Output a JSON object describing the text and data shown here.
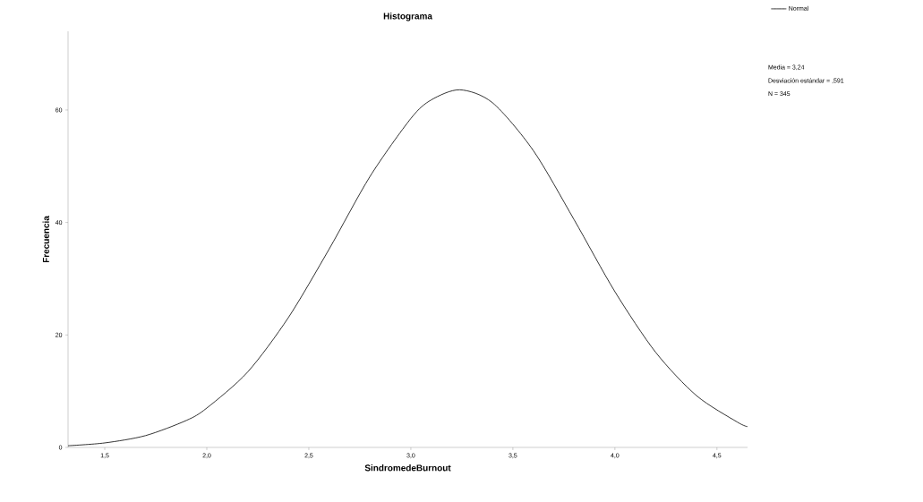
{
  "chart_data": {
    "type": "line",
    "title": "Histograma",
    "xlabel": "SindromedeBurnout",
    "ylabel": "Frecuencia",
    "annotations": [
      "Media = 3,24",
      "Desviación estándar = ,591",
      "N = 345"
    ],
    "x": [
      1.32,
      1.5,
      1.7,
      1.9,
      2.0,
      2.2,
      2.4,
      2.6,
      2.8,
      3.0,
      3.1,
      3.24,
      3.4,
      3.6,
      3.8,
      4.0,
      4.2,
      4.4,
      4.6,
      4.65
    ],
    "series": [
      {
        "name": "Normal",
        "color": "#000000",
        "values": [
          0.3,
          0.8,
          2.1,
          4.8,
          7.0,
          13.4,
          23.1,
          35.3,
          48.2,
          58.5,
          61.8,
          63.6,
          61.3,
          52.8,
          40.5,
          27.7,
          16.9,
          9.2,
          4.5,
          3.7
        ]
      }
    ],
    "xlim": [
      1.32,
      4.65
    ],
    "ylim": [
      0,
      74
    ],
    "xticks": [
      {
        "value": 1.5,
        "label": "1,5"
      },
      {
        "value": 2.0,
        "label": "2,0"
      },
      {
        "value": 2.5,
        "label": "2,5"
      },
      {
        "value": 3.0,
        "label": "3,0"
      },
      {
        "value": 3.5,
        "label": "3,5"
      },
      {
        "value": 4.0,
        "label": "4,0"
      },
      {
        "value": 4.5,
        "label": "4,5"
      }
    ],
    "yticks": [
      0,
      20,
      40,
      60
    ],
    "legend": "top right",
    "marker": "none",
    "line_style": "solid",
    "grid": false
  }
}
